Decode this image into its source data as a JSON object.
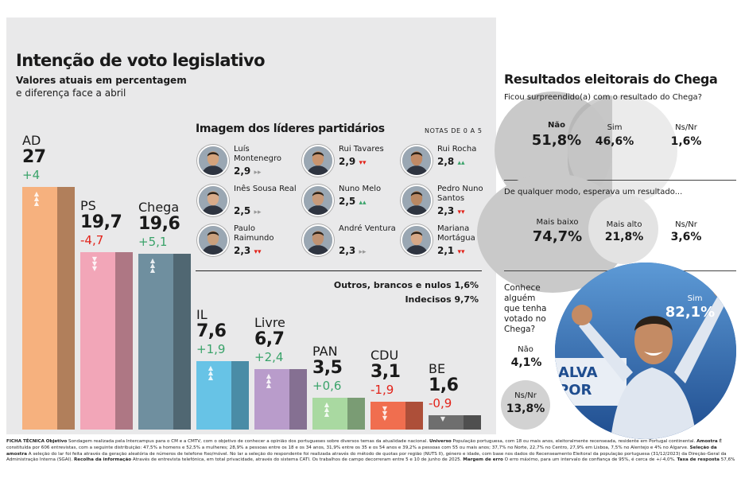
{
  "title": "Intenção de voto legislativo",
  "subtitle_1": "Valores atuais em percentagem",
  "subtitle_2": "e diferença face a abril",
  "chart_data": {
    "type": "bar",
    "title": "Intenção de voto legislativo",
    "subtitle": "Valores atuais em percentagem e diferença face a abril",
    "unit": "%",
    "categories": [
      "AD",
      "PS",
      "Chega",
      "IL",
      "Livre",
      "PAN",
      "CDU",
      "BE"
    ],
    "values": [
      27,
      19.7,
      19.6,
      7.6,
      6.7,
      3.5,
      3.1,
      1.6
    ],
    "value_labels": [
      "27",
      "19,7",
      "19,6",
      "7,6",
      "6,7",
      "3,5",
      "3,1",
      "1,6"
    ],
    "changes": [
      4,
      -4.7,
      5.1,
      1.9,
      2.4,
      0.6,
      -1.9,
      -0.9
    ],
    "change_labels": [
      "+4",
      "-4,7",
      "+5,1",
      "+1,9",
      "+2,4",
      "+0,6",
      "-1,9",
      "-0,9"
    ],
    "colors": [
      "#f6b17e",
      "#f2a6b8",
      "#6f8f9f",
      "#67c3e6",
      "#b99ccb",
      "#a9d9a1",
      "#f06e4f",
      "#6e6e6e"
    ]
  },
  "leaders": {
    "title": "Imagem dos líderes partidários",
    "note": "NOTAS DE 0 A 5",
    "items": [
      {
        "name": "Luís Montenegro",
        "score": "2,9",
        "trend": "flat",
        "trend_glyph": "▸▸"
      },
      {
        "name": "Rui Tavares",
        "score": "2,9",
        "trend": "down",
        "trend_glyph": "▾▾"
      },
      {
        "name": "Rui Rocha",
        "score": "2,8",
        "trend": "up",
        "trend_glyph": "▴▴"
      },
      {
        "name": "Inês Sousa Real",
        "score": "2,5",
        "trend": "flat",
        "trend_glyph": "▸▸"
      },
      {
        "name": "Nuno Melo",
        "score": "2,5",
        "trend": "up",
        "trend_glyph": "▴▴"
      },
      {
        "name": "Pedro Nuno Santos",
        "score": "2,3",
        "trend": "down",
        "trend_glyph": "▾▾"
      },
      {
        "name": "Paulo Raimundo",
        "score": "2,3",
        "trend": "down",
        "trend_glyph": "▾▾"
      },
      {
        "name": "André Ventura",
        "score": "2,3",
        "trend": "flat",
        "trend_glyph": "▸▸"
      },
      {
        "name": "Mariana Mortágua",
        "score": "2,1",
        "trend": "down",
        "trend_glyph": "▾▾"
      }
    ]
  },
  "others": {
    "others_line": "Outros, brancos e nulos 1,6%",
    "undecided_line": "Indecisos 9,7%"
  },
  "right": {
    "title": "Resultados eleitorais do Chega",
    "q1": {
      "question": "Ficou surpreendido(a) com o resultado do Chega?",
      "answers": [
        {
          "label": "Não",
          "value": "51,8%"
        },
        {
          "label": "Sim",
          "value": "46,6%"
        },
        {
          "label": "Ns/Nr",
          "value": "1,6%"
        }
      ]
    },
    "q2": {
      "question": "De qualquer modo, esperava um resultado...",
      "answers": [
        {
          "label": "Mais baixo",
          "value": "74,7%"
        },
        {
          "label": "Mais alto",
          "value": "21,8%"
        },
        {
          "label": "Ns/Nr",
          "value": "3,6%"
        }
      ]
    },
    "q3": {
      "question": "Conhece alguém que tenha votado no Chega?",
      "answers": [
        {
          "label": "Sim",
          "value": "82,1%"
        },
        {
          "label": "Não",
          "value": "4,1%"
        },
        {
          "label": "Ns/Nr",
          "value": "13,8%"
        }
      ],
      "poster_text": "ALVA POR"
    }
  },
  "footer": {
    "ficha_label": "FICHA TÉCNICA",
    "objetivo_label": "Objetivo",
    "objetivo": "Sondagem realizada pela Intercampus para o CM e a CMTV, com o objetivo de conhecer a opinião dos portugueses sobre diversos temas da atualidade nacional.",
    "universo_label": "Universo",
    "universo": "População portuguesa, com 18 ou mais anos, eleitoralmente recenseada, residente em Portugal continental.",
    "amostra_label": "Amostra",
    "amostra": "É constituída por 606 entrevistas, com a seguinte distribuição: 47,5% a homens e 52,5% a mulheres; 28,9% a pessoas entre os 18 e os 34 anos, 31,9% entre os 35 e os 54 anos e 39,2% a pessoas com 55 ou mais anos; 37,7% no Norte, 22,7% no Centro, 27,9% em Lisboa, 7,5% no Alentejo e 4% no Algarve.",
    "selecao_label": "Seleção da amostra",
    "selecao": "A seleção do lar foi feita através da geração aleatória de números de telefone fixo/móvel. No lar a seleção do respondente foi realizada através do método de quotas por região (NUTS II), género e idade, com base nos dados do Recenseamento Eleitoral da população portuguesa (31/12/2023) da Direção-Geral da Administração Interna (SGAI).",
    "recolha_label": "Recolha da informação",
    "recolha": "Através de entrevista telefónica, em total privacidade, através do sistema CATI. Os trabalhos de campo decorreram entre 5 e 10 de junho de 2025.",
    "margem_label": "Margem de erro",
    "margem": "O erro máximo, para um intervalo de confiança de 95%, é cerca de +/-4,0%.",
    "taxa_label": "Taxa de resposta",
    "taxa": "57,6%"
  }
}
